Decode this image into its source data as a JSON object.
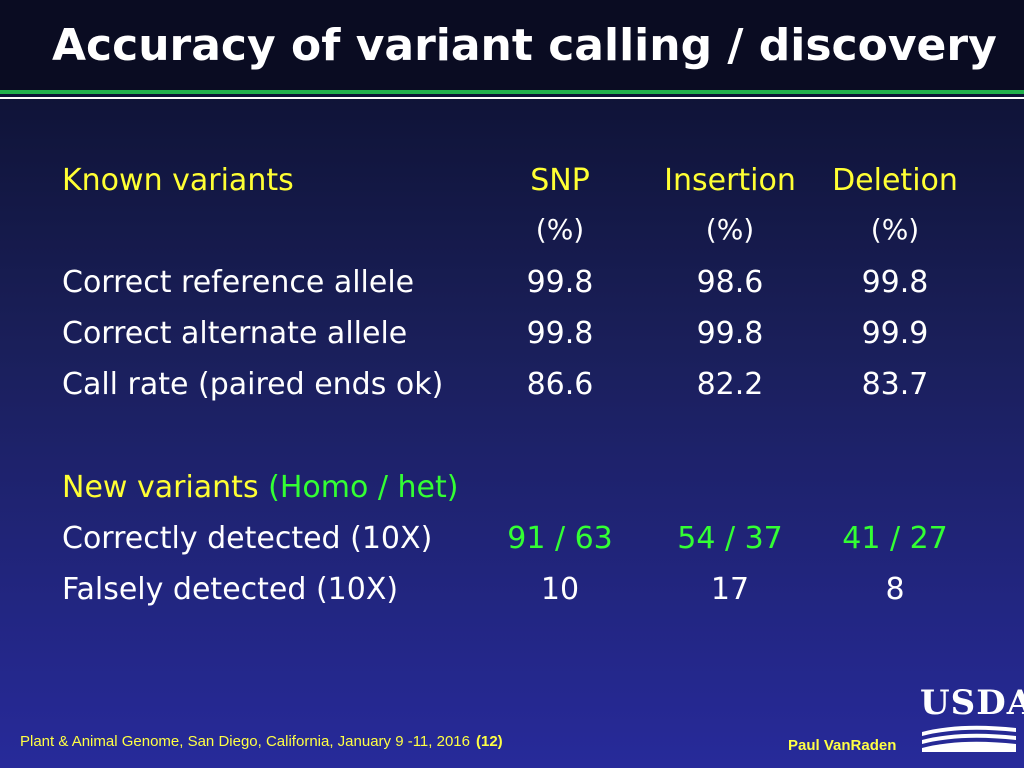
{
  "slide": {
    "title": "Accuracy of variant calling / discovery"
  },
  "known": {
    "heading": "Known variants",
    "columns": [
      {
        "name": "SNP",
        "unit": "(%)"
      },
      {
        "name": "Insertion",
        "unit": "(%)"
      },
      {
        "name": "Deletion",
        "unit": "(%)"
      }
    ],
    "rows": [
      {
        "label": "Correct reference allele",
        "values": [
          "99.8",
          "98.6",
          "99.8"
        ]
      },
      {
        "label": "Correct alternate allele",
        "values": [
          "99.8",
          "99.8",
          "99.9"
        ]
      },
      {
        "label": "Call rate (paired ends ok)",
        "values": [
          "86.6",
          "82.2",
          "83.7"
        ]
      }
    ]
  },
  "new": {
    "heading": "New variants",
    "subheading": "(Homo / het)",
    "rows": [
      {
        "label": "Correctly detected (10X)",
        "values": [
          "91 / 63",
          "54 / 37",
          "41 / 27"
        ]
      },
      {
        "label": "Falsely detected (10X)",
        "values": [
          "10",
          "17",
          "8"
        ]
      }
    ]
  },
  "footer": {
    "citation": "Plant & Animal Genome, San Diego,  California, January  9 -11, 2016",
    "page": "(12)",
    "author": "Paul VanRaden",
    "logo_text": "USDA"
  },
  "colors": {
    "heading": "#ffff33",
    "highlight": "#33ff33",
    "text": "#ffffff",
    "accent_rule": "#22b14c"
  }
}
